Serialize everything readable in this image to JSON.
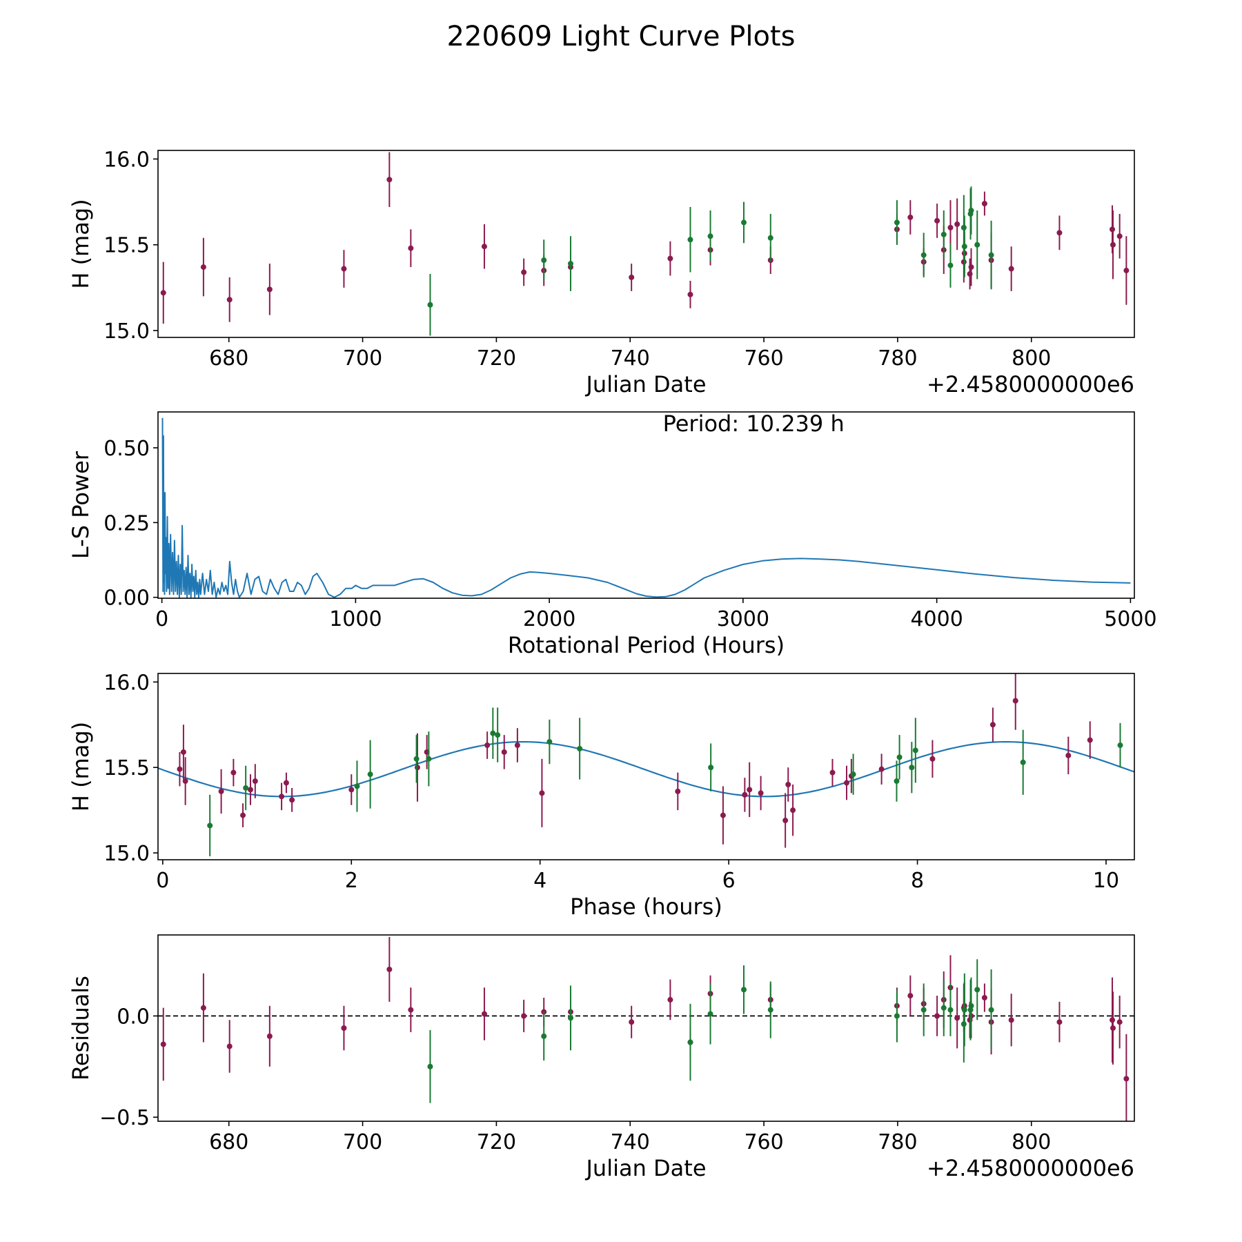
{
  "title": "220609 Light Curve Plots",
  "colors": {
    "red": "#8b1a4f",
    "green": "#1a7a33",
    "line": "#1f77b4"
  },
  "chart_data": [
    {
      "id": "lightcurve",
      "type": "scatter",
      "xlabel": "Julian Date",
      "ylabel": "H (mag)",
      "offset_label": "+2.4580000000e6",
      "xlim": [
        669.4,
        815.4
      ],
      "ylim": [
        14.96,
        16.05
      ],
      "xticks": [
        680,
        700,
        720,
        740,
        760,
        780,
        800
      ],
      "yticks": [
        15.0,
        15.5,
        16.0
      ],
      "ytick_labels": [
        "15.0",
        "15.5",
        "16.0"
      ],
      "series": [
        {
          "name": "red-filter",
          "color": "red",
          "x": [
            670.2,
            676.2,
            680.1,
            686.1,
            697.2,
            704.0,
            707.2,
            718.2,
            724.1,
            727.1,
            731.1,
            740.2,
            746.0,
            749.0,
            752.0,
            761.0,
            779.9,
            781.9,
            783.9,
            785.9,
            786.9,
            787.9,
            788.9,
            789.9,
            790.0,
            790.8,
            791.0,
            793.0,
            794.0,
            797.0,
            804.2,
            812.1,
            812.2,
            813.2,
            814.2
          ],
          "y": [
            15.22,
            15.37,
            15.18,
            15.24,
            15.36,
            15.88,
            15.48,
            15.49,
            15.34,
            15.35,
            15.37,
            15.31,
            15.42,
            15.21,
            15.47,
            15.41,
            15.59,
            15.66,
            15.4,
            15.64,
            15.47,
            15.6,
            15.62,
            15.4,
            15.45,
            15.33,
            15.37,
            15.74,
            15.41,
            15.36,
            15.57,
            15.59,
            15.5,
            15.55,
            15.35
          ],
          "err": [
            0.18,
            0.17,
            0.13,
            0.15,
            0.11,
            0.16,
            0.11,
            0.13,
            0.08,
            0.09,
            0.09,
            0.08,
            0.1,
            0.08,
            0.09,
            0.08,
            0.09,
            0.1,
            0.08,
            0.1,
            0.14,
            0.16,
            0.15,
            0.12,
            0.12,
            0.09,
            0.11,
            0.07,
            0.16,
            0.13,
            0.1,
            0.14,
            0.2,
            0.13,
            0.2
          ]
        },
        {
          "name": "green-filter",
          "color": "green",
          "x": [
            710.1,
            727.1,
            731.1,
            749.0,
            752.0,
            757.0,
            761.0,
            779.9,
            783.9,
            786.9,
            787.9,
            789.9,
            790.0,
            790.9,
            791.0,
            791.9,
            794.0
          ],
          "y": [
            15.15,
            15.41,
            15.39,
            15.53,
            15.55,
            15.63,
            15.54,
            15.63,
            15.44,
            15.56,
            15.38,
            15.6,
            15.49,
            15.68,
            15.7,
            15.5,
            15.44
          ],
          "err": [
            0.18,
            0.12,
            0.16,
            0.19,
            0.15,
            0.12,
            0.14,
            0.13,
            0.13,
            0.14,
            0.13,
            0.19,
            0.18,
            0.15,
            0.14,
            0.2,
            0.2
          ]
        }
      ]
    },
    {
      "id": "periodogram",
      "type": "line",
      "xlabel": "Rotational Period (Hours)",
      "ylabel": "L-S Power",
      "annotation": "Period: 10.239 h",
      "xlim": [
        -20,
        5020
      ],
      "ylim": [
        -0.003,
        0.62
      ],
      "xticks": [
        0,
        1000,
        2000,
        3000,
        4000,
        5000
      ],
      "xtick_labels": [
        "0",
        "1000",
        "2000",
        "3000",
        "4000",
        "5000"
      ],
      "yticks": [
        0.0,
        0.25,
        0.5
      ],
      "ytick_labels": [
        "0.00",
        "0.25",
        "0.50"
      ],
      "series": [
        {
          "name": "L-S power",
          "color": "line",
          "x": [
            3,
            6,
            8,
            10,
            12,
            14,
            16,
            18,
            20,
            24,
            28,
            32,
            36,
            40,
            45,
            50,
            55,
            60,
            65,
            70,
            75,
            80,
            85,
            90,
            95,
            100,
            105,
            110,
            115,
            120,
            125,
            130,
            135,
            140,
            145,
            150,
            155,
            160,
            165,
            170,
            175,
            180,
            185,
            190,
            195,
            200,
            210,
            220,
            230,
            240,
            250,
            260,
            270,
            280,
            290,
            300,
            310,
            320,
            330,
            340,
            350,
            360,
            370,
            380,
            390,
            400,
            420,
            440,
            460,
            480,
            500,
            520,
            540,
            560,
            580,
            600,
            620,
            640,
            660,
            680,
            700,
            720,
            740,
            760,
            780,
            800,
            830,
            860,
            890,
            920,
            950,
            980,
            1000,
            1030,
            1060,
            1090,
            1120,
            1160,
            1200,
            1250,
            1300,
            1350,
            1400,
            1450,
            1500,
            1550,
            1600,
            1650,
            1700,
            1750,
            1800,
            1850,
            1900,
            1950,
            2000,
            2100,
            2200,
            2300,
            2400,
            2450,
            2500,
            2550,
            2600,
            2650,
            2700,
            2750,
            2800,
            2900,
            3000,
            3100,
            3200,
            3300,
            3400,
            3500,
            3600,
            3700,
            3800,
            3900,
            4000,
            4200,
            4400,
            4600,
            4800,
            5000
          ],
          "y": [
            0.6,
            0.02,
            0.54,
            0.05,
            0.3,
            0.01,
            0.35,
            0.08,
            0.2,
            0.02,
            0.27,
            0.03,
            0.18,
            0.01,
            0.21,
            0.02,
            0.15,
            0.01,
            0.19,
            0.02,
            0.12,
            0.01,
            0.14,
            0.0,
            0.11,
            0.01,
            0.24,
            0.02,
            0.09,
            0.01,
            0.1,
            0.0,
            0.14,
            0.01,
            0.08,
            0.0,
            0.11,
            0.02,
            0.07,
            0.0,
            0.09,
            0.01,
            0.05,
            0.0,
            0.06,
            0.01,
            0.08,
            0.01,
            0.06,
            0.02,
            0.09,
            0.01,
            0.05,
            0.0,
            0.03,
            0.01,
            0.05,
            0.02,
            0.04,
            0.01,
            0.12,
            0.05,
            0.01,
            0.06,
            0.02,
            0.0,
            0.02,
            0.08,
            0.01,
            0.06,
            0.07,
            0.02,
            0.01,
            0.06,
            0.03,
            0.01,
            0.05,
            0.06,
            0.02,
            0.02,
            0.05,
            0.04,
            0.01,
            0.03,
            0.07,
            0.08,
            0.05,
            0.01,
            0.0,
            0.01,
            0.03,
            0.03,
            0.04,
            0.03,
            0.03,
            0.04,
            0.04,
            0.04,
            0.04,
            0.05,
            0.06,
            0.062,
            0.05,
            0.03,
            0.015,
            0.007,
            0.005,
            0.01,
            0.025,
            0.045,
            0.065,
            0.078,
            0.085,
            0.083,
            0.08,
            0.073,
            0.065,
            0.05,
            0.025,
            0.012,
            0.004,
            0.001,
            0.002,
            0.01,
            0.025,
            0.045,
            0.065,
            0.09,
            0.11,
            0.122,
            0.128,
            0.13,
            0.128,
            0.125,
            0.12,
            0.113,
            0.106,
            0.099,
            0.092,
            0.078,
            0.066,
            0.057,
            0.051,
            0.048
          ]
        }
      ]
    },
    {
      "id": "phased",
      "type": "scatter",
      "xlabel": "Phase (hours)",
      "ylabel": "H (mag)",
      "xlim": [
        -0.05,
        10.3
      ],
      "ylim": [
        14.96,
        16.05
      ],
      "xticks": [
        0,
        2,
        4,
        6,
        8,
        10
      ],
      "xtick_labels": [
        "0",
        "2",
        "4",
        "6",
        "8",
        "10"
      ],
      "yticks": [
        15.0,
        15.5,
        16.0
      ],
      "ytick_labels": [
        "15.0",
        "15.5",
        "16.0"
      ],
      "fit": {
        "period": 10.239,
        "mean": 15.49,
        "amplitude": 0.16,
        "phase_of_max": 3.82,
        "harmonics": 2,
        "color": "line"
      },
      "series": [
        {
          "name": "red-filter",
          "color": "red",
          "x": [
            0.18,
            0.22,
            0.24,
            0.62,
            0.75,
            0.85,
            0.93,
            0.98,
            1.26,
            1.31,
            1.37,
            2.0,
            2.7,
            2.8,
            3.44,
            3.62,
            3.76,
            4.02,
            5.46,
            5.94,
            6.17,
            6.22,
            6.34,
            6.6,
            6.63,
            6.68,
            7.1,
            7.25,
            7.3,
            7.62,
            8.16,
            8.8,
            9.04,
            9.6,
            9.83
          ],
          "y": [
            15.49,
            15.59,
            15.42,
            15.36,
            15.47,
            15.22,
            15.37,
            15.42,
            15.33,
            15.41,
            15.31,
            15.37,
            15.5,
            15.59,
            15.63,
            15.59,
            15.63,
            15.35,
            15.36,
            15.22,
            15.34,
            15.37,
            15.35,
            15.19,
            15.4,
            15.25,
            15.47,
            15.41,
            15.45,
            15.49,
            15.55,
            15.75,
            15.89,
            15.57,
            15.66
          ],
          "err": [
            0.1,
            0.16,
            0.14,
            0.13,
            0.08,
            0.07,
            0.09,
            0.1,
            0.08,
            0.06,
            0.07,
            0.09,
            0.2,
            0.1,
            0.08,
            0.1,
            0.1,
            0.2,
            0.11,
            0.17,
            0.1,
            0.16,
            0.1,
            0.16,
            0.1,
            0.15,
            0.08,
            0.1,
            0.1,
            0.09,
            0.11,
            0.1,
            0.17,
            0.11,
            0.11
          ]
        },
        {
          "name": "green-filter",
          "color": "green",
          "x": [
            0.5,
            0.88,
            2.06,
            2.2,
            2.69,
            2.82,
            3.5,
            3.55,
            4.1,
            4.42,
            5.81,
            7.32,
            7.78,
            7.81,
            7.94,
            7.98,
            9.12,
            10.15
          ],
          "y": [
            15.16,
            15.38,
            15.39,
            15.46,
            15.55,
            15.55,
            15.7,
            15.69,
            15.65,
            15.61,
            15.5,
            15.46,
            15.42,
            15.56,
            15.5,
            15.6,
            15.53,
            15.63
          ],
          "err": [
            0.18,
            0.13,
            0.15,
            0.2,
            0.14,
            0.16,
            0.15,
            0.16,
            0.13,
            0.18,
            0.14,
            0.12,
            0.12,
            0.13,
            0.15,
            0.19,
            0.19,
            0.13
          ]
        }
      ]
    },
    {
      "id": "residuals",
      "type": "scatter",
      "xlabel": "Julian Date",
      "ylabel": "Residuals",
      "offset_label": "+2.4580000000e6",
      "xlim": [
        669.4,
        815.4
      ],
      "ylim": [
        -0.52,
        0.4
      ],
      "xticks": [
        680,
        700,
        720,
        740,
        760,
        780,
        800
      ],
      "yticks": [
        -0.5,
        0.0
      ],
      "ytick_labels": [
        "−0.5",
        "0.0"
      ],
      "zero_line": true,
      "series": [
        {
          "name": "red-filter",
          "color": "red",
          "x": [
            670.2,
            676.2,
            680.1,
            686.1,
            697.2,
            704.0,
            707.2,
            718.2,
            724.1,
            727.1,
            731.1,
            740.2,
            746.0,
            749.0,
            752.0,
            761.0,
            779.9,
            781.9,
            783.9,
            785.9,
            786.9,
            787.9,
            788.9,
            789.9,
            790.0,
            790.8,
            791.0,
            793.0,
            794.0,
            797.0,
            804.2,
            812.1,
            812.2,
            813.2,
            814.2
          ],
          "y": [
            -0.14,
            0.04,
            -0.15,
            -0.1,
            -0.06,
            0.23,
            0.03,
            0.01,
            0.0,
            0.02,
            0.02,
            -0.03,
            0.08,
            -0.13,
            0.11,
            0.08,
            0.05,
            0.1,
            0.06,
            0.0,
            0.08,
            0.14,
            -0.01,
            0.04,
            0.05,
            -0.02,
            0.0,
            0.09,
            -0.03,
            -0.02,
            -0.03,
            -0.02,
            -0.06,
            -0.03,
            -0.31
          ],
          "err": [
            0.18,
            0.17,
            0.13,
            0.15,
            0.11,
            0.16,
            0.11,
            0.13,
            0.08,
            0.07,
            0.09,
            0.08,
            0.1,
            0.08,
            0.09,
            0.08,
            0.09,
            0.1,
            0.08,
            0.1,
            0.14,
            0.16,
            0.15,
            0.12,
            0.12,
            0.09,
            0.11,
            0.07,
            0.16,
            0.13,
            0.1,
            0.21,
            0.18,
            0.13,
            0.22
          ]
        },
        {
          "name": "green-filter",
          "color": "green",
          "x": [
            710.1,
            727.1,
            731.1,
            749.0,
            752.0,
            757.0,
            761.0,
            779.9,
            783.9,
            786.9,
            787.9,
            789.9,
            790.0,
            790.9,
            791.0,
            791.9,
            794.0
          ],
          "y": [
            -0.25,
            -0.1,
            -0.01,
            -0.13,
            0.01,
            0.13,
            0.03,
            0.0,
            0.03,
            0.04,
            0.03,
            -0.04,
            0.03,
            0.03,
            0.05,
            0.13,
            0.03
          ],
          "err": [
            0.18,
            0.12,
            0.16,
            0.19,
            0.15,
            0.12,
            0.14,
            0.13,
            0.13,
            0.14,
            0.13,
            0.19,
            0.18,
            0.15,
            0.14,
            0.15,
            0.2
          ]
        }
      ]
    }
  ]
}
